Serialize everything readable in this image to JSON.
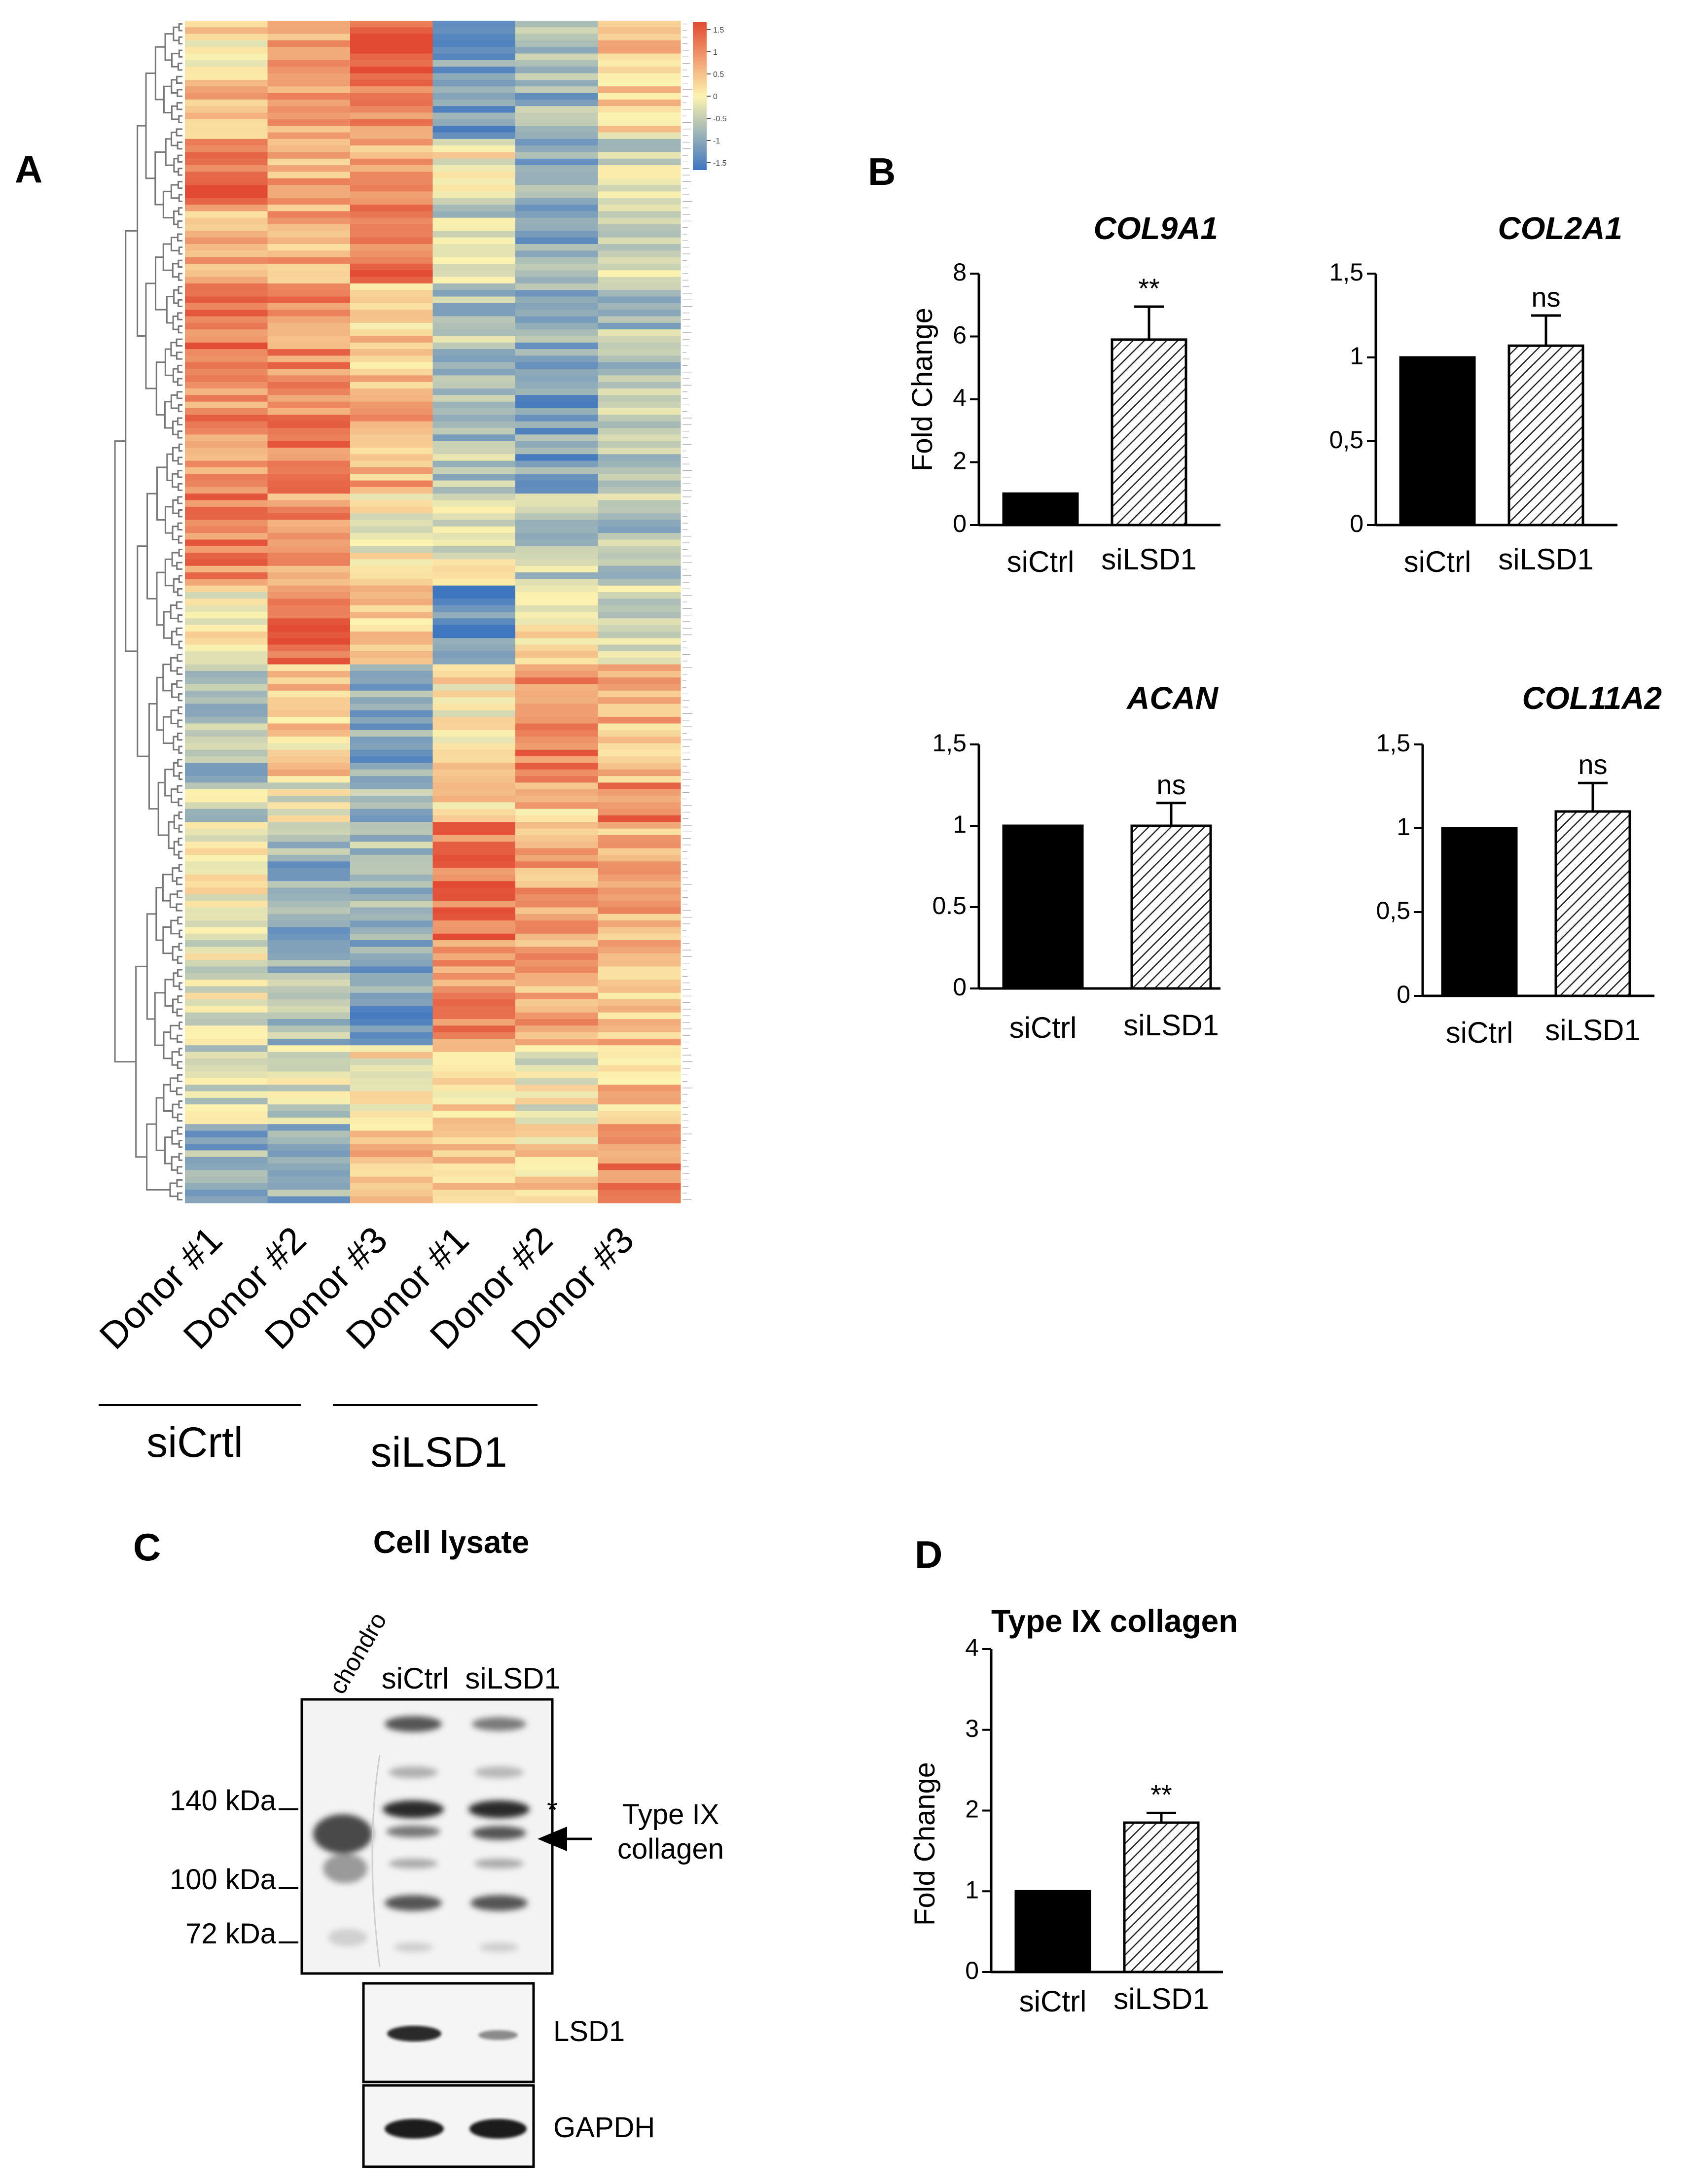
{
  "panels": {
    "a": "A",
    "b": "B",
    "c": "C",
    "d": "D"
  },
  "colors": {
    "low": "#3f76c0",
    "mid": "#fdf3b0",
    "high": "#e24a33",
    "bar_ctrl": "#000000",
    "bar_ko_fill": "#ffffff",
    "axis": "#000000"
  },
  "heatmap": {
    "columns": [
      "Donor #1",
      "Donor #2",
      "Donor #3",
      "Donor #1",
      "Donor #2",
      "Donor #3"
    ],
    "groups": [
      {
        "label": "siCrtl",
        "span": [
          0,
          2
        ]
      },
      {
        "label": "siLSD1",
        "span": [
          3,
          5
        ]
      }
    ],
    "scale": {
      "ticks": [
        "1.5",
        "1",
        "0.5",
        "0",
        "-0.5",
        "-1",
        "-1.5"
      ],
      "min": -1.5,
      "max": 1.5
    },
    "blocks": [
      {
        "rows": 8,
        "pattern": [
          0.2,
          0.6,
          1.4,
          -1.0,
          -0.6,
          0.3
        ]
      },
      {
        "rows": 10,
        "pattern": [
          0.5,
          0.8,
          1.0,
          -1.0,
          -0.8,
          0.2
        ]
      },
      {
        "rows": 10,
        "pattern": [
          1.3,
          0.6,
          0.6,
          0.0,
          -0.8,
          -0.3
        ]
      },
      {
        "rows": 12,
        "pattern": [
          0.6,
          0.6,
          1.1,
          -0.4,
          -0.9,
          -0.2
        ]
      },
      {
        "rows": 16,
        "pattern": [
          1.1,
          0.9,
          0.4,
          -0.6,
          -0.8,
          -0.6
        ]
      },
      {
        "rows": 16,
        "pattern": [
          0.9,
          1.0,
          0.6,
          -0.6,
          -1.0,
          -0.4
        ]
      },
      {
        "rows": 14,
        "pattern": [
          1.0,
          0.8,
          0.0,
          -0.2,
          -0.5,
          -0.6
        ]
      },
      {
        "rows": 12,
        "pattern": [
          0.1,
          1.1,
          0.4,
          -1.2,
          0.2,
          -0.3
        ]
      },
      {
        "rows": 18,
        "pattern": [
          -0.7,
          0.3,
          -0.9,
          0.1,
          1.0,
          0.5
        ]
      },
      {
        "rows": 6,
        "pattern": [
          -0.4,
          -0.1,
          -0.7,
          0.2,
          0.4,
          1.0
        ]
      },
      {
        "rows": 18,
        "pattern": [
          -0.1,
          -0.8,
          -0.6,
          1.1,
          0.7,
          0.6
        ]
      },
      {
        "rows": 16,
        "pattern": [
          -0.2,
          -0.7,
          -1.0,
          0.9,
          0.6,
          0.5
        ]
      },
      {
        "rows": 12,
        "pattern": [
          -0.3,
          -0.3,
          0.1,
          0.3,
          -0.1,
          0.4
        ]
      },
      {
        "rows": 12,
        "pattern": [
          -0.8,
          -0.9,
          0.4,
          0.3,
          0.2,
          1.0
        ]
      }
    ]
  },
  "chart_data": [
    {
      "type": "bar",
      "title": "COL9A1",
      "ylabel": "Fold Change",
      "categories": [
        "siCtrl",
        "siLSD1"
      ],
      "values": [
        1.0,
        5.9
      ],
      "errors": [
        0,
        1.05
      ],
      "ylim": [
        0,
        8
      ],
      "yticks": [
        "0",
        "2",
        "4",
        "6",
        "8"
      ],
      "significance": [
        "",
        "**"
      ]
    },
    {
      "type": "bar",
      "title": "COL2A1",
      "ylabel": "",
      "categories": [
        "siCtrl",
        "siLSD1"
      ],
      "values": [
        1.0,
        1.07
      ],
      "errors": [
        0,
        0.18
      ],
      "ylim": [
        0,
        1.5
      ],
      "yticks": [
        "0",
        "0,5",
        "1",
        "1,5"
      ],
      "significance": [
        "",
        "ns"
      ]
    },
    {
      "type": "bar",
      "title": "ACAN",
      "ylabel": "",
      "categories": [
        "siCtrl",
        "siLSD1"
      ],
      "values": [
        1.0,
        1.0
      ],
      "errors": [
        0,
        0.14
      ],
      "ylim": [
        0,
        1.5
      ],
      "yticks": [
        "0",
        "0.5",
        "1",
        "1,5"
      ],
      "significance": [
        "",
        "ns"
      ]
    },
    {
      "type": "bar",
      "title": "COL11A2",
      "ylabel": "",
      "categories": [
        "siCtrl",
        "siLSD1"
      ],
      "values": [
        1.0,
        1.1
      ],
      "errors": [
        0,
        0.17
      ],
      "ylim": [
        0,
        1.5
      ],
      "yticks": [
        "0",
        "0,5",
        "1",
        "1,5"
      ],
      "significance": [
        "",
        "ns"
      ]
    },
    {
      "type": "bar",
      "title": "Type IX collagen",
      "ylabel": "Fold Change",
      "categories": [
        "siCtrl",
        "siLSD1"
      ],
      "values": [
        1.0,
        1.85
      ],
      "errors": [
        0,
        0.12
      ],
      "ylim": [
        0,
        4
      ],
      "yticks": [
        "0",
        "1",
        "2",
        "3",
        "4"
      ],
      "significance": [
        "",
        "**"
      ]
    }
  ],
  "blot": {
    "title": "Cell lysate",
    "lanes": [
      "chondro",
      "siCtrl",
      "siLSD1"
    ],
    "markers": [
      "140 kDa",
      "100 kDa",
      "72 kDa"
    ],
    "asterisk": "*",
    "arrow_label": [
      "Type IX",
      "collagen"
    ],
    "strips": [
      "LSD1",
      "GAPDH"
    ]
  }
}
